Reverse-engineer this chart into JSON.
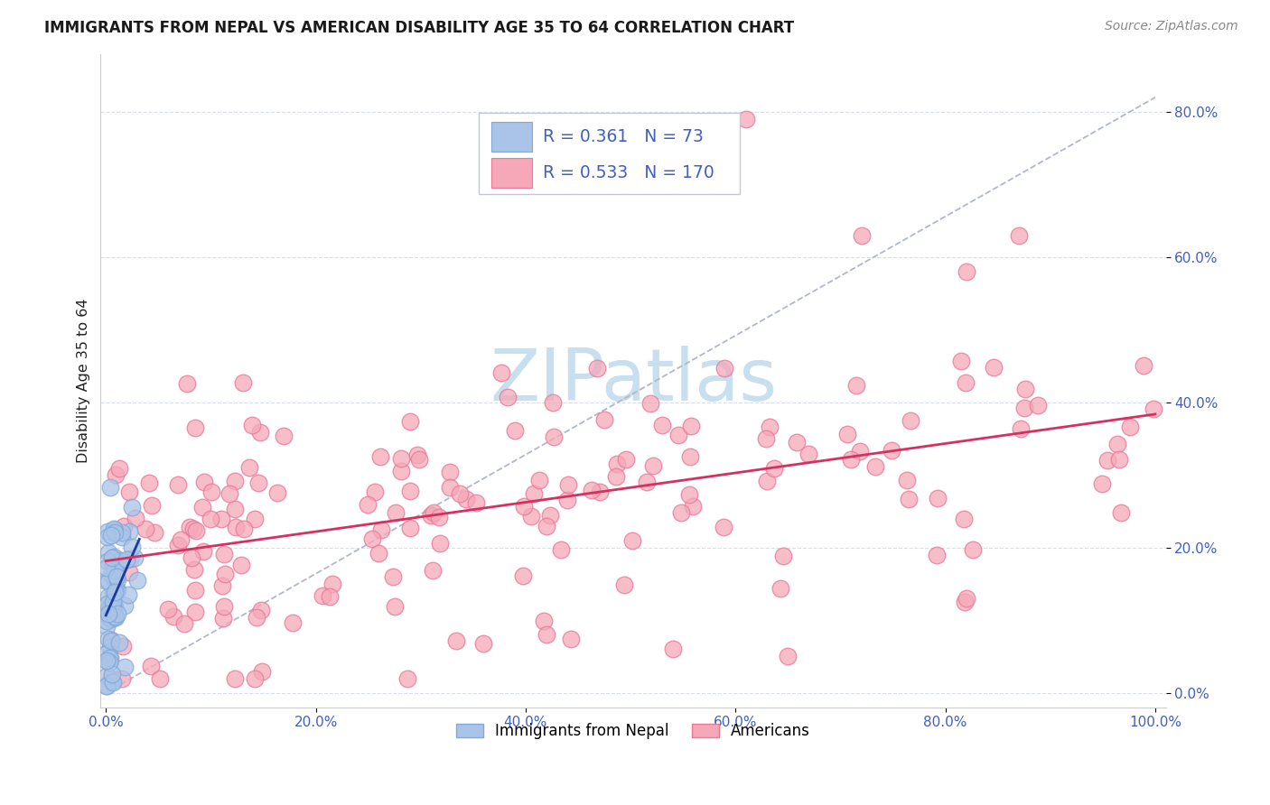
{
  "title": "IMMIGRANTS FROM NEPAL VS AMERICAN DISABILITY AGE 35 TO 64 CORRELATION CHART",
  "source": "Source: ZipAtlas.com",
  "ylabel": "Disability Age 35 to 64",
  "legend_label1": "Immigrants from Nepal",
  "legend_label2": "Americans",
  "R1": 0.361,
  "N1": 73,
  "R2": 0.533,
  "N2": 170,
  "color1": "#aac4e8",
  "color2": "#f5a8b8",
  "edge_color1": "#80a8d8",
  "edge_color2": "#e87898",
  "line_color1": "#1a3a9f",
  "line_color2": "#d63060",
  "ref_line_color": "#b0b8c8",
  "grid_color": "#d8dde8",
  "tick_color": "#4060c0",
  "title_color": "#1a1a1a",
  "source_color": "#888888",
  "watermark_color": "#c8dff0",
  "legend_edge_color": "#c0c8d8"
}
